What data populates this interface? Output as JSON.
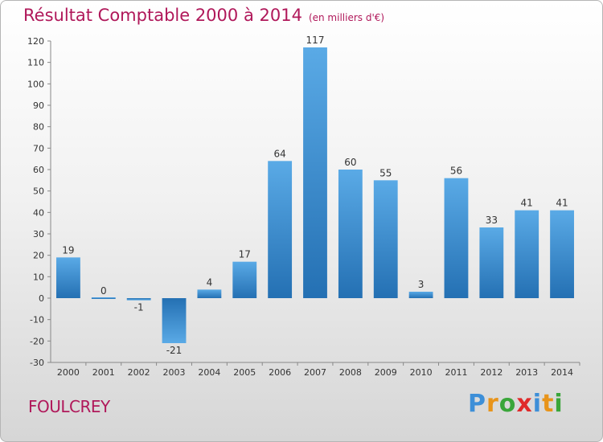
{
  "header": {
    "title": "Résultat Comptable 2000 à 2014",
    "subtitle": "(en milliers d'€)"
  },
  "footer": {
    "place": "FOULCREY",
    "logo": "Proxiti",
    "logo_letters": [
      {
        "ch": "P",
        "color": "#3d8fd8"
      },
      {
        "ch": "r",
        "color": "#e8941a"
      },
      {
        "ch": "o",
        "color": "#3aa63a"
      },
      {
        "ch": "x",
        "color": "#e02a2a"
      },
      {
        "ch": "i",
        "color": "#3d8fd8"
      },
      {
        "ch": "t",
        "color": "#e8941a"
      },
      {
        "ch": "i",
        "color": "#3aa63a"
      }
    ]
  },
  "chart_data": {
    "type": "bar",
    "title": "Résultat Comptable 2000 à 2014",
    "subtitle": "(en milliers d'€)",
    "categories": [
      "2000",
      "2001",
      "2002",
      "2003",
      "2004",
      "2005",
      "2006",
      "2007",
      "2008",
      "2009",
      "2010",
      "2011",
      "2012",
      "2013",
      "2014"
    ],
    "values": [
      19,
      0,
      -1,
      -21,
      4,
      17,
      64,
      117,
      60,
      55,
      3,
      56,
      33,
      41,
      41
    ],
    "data_labels": [
      "19",
      "0",
      "-1",
      "-21",
      "4",
      "17",
      "64",
      "117",
      "60",
      "55",
      "3",
      "56",
      "33",
      "41",
      "41"
    ],
    "ylim": [
      -30,
      120
    ],
    "yticks": [
      120,
      110,
      100,
      90,
      80,
      70,
      60,
      50,
      40,
      30,
      20,
      10,
      0,
      -10,
      -20,
      -30
    ],
    "ytick_labels": [
      "120",
      "110",
      "100",
      "90",
      "80",
      "70",
      "60",
      "50",
      "40",
      "30",
      "20",
      "10",
      "0",
      "-10",
      "-20",
      "-30"
    ],
    "xlabel": "",
    "ylabel": "",
    "grid": false,
    "legend": "none",
    "bar_color_light": "#5aaae6",
    "bar_color_dark": "#2470b3"
  }
}
